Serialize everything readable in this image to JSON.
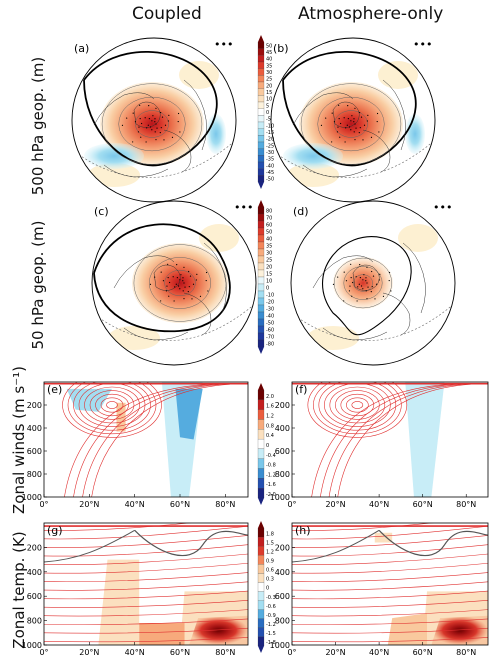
{
  "figure": {
    "column_titles": [
      "Coupled",
      "Atmosphere-only"
    ],
    "row_titles": [
      "500 hPa geop. (m)",
      "50 hPa geop. (m)",
      "Zonal winds (m s⁻¹)",
      "Zonal temp. (K)"
    ]
  },
  "chart_data": [
    {
      "type": "heatmap",
      "panel": "(a)",
      "kind": "polar map",
      "column": "Coupled",
      "row": "500 hPa geop. (m)",
      "features": [
        "positive anomaly over Arctic / Greenland",
        "negative anomaly over North Pacific",
        "negative anomaly over central Asia"
      ]
    },
    {
      "type": "heatmap",
      "panel": "(b)",
      "kind": "polar map",
      "column": "Atmosphere-only",
      "row": "500 hPa geop. (m)",
      "features": [
        "positive anomaly over Arctic",
        "negative anomaly over North Pacific"
      ]
    },
    {
      "type": "heatmap",
      "panel": "(c)",
      "kind": "polar map",
      "column": "Coupled",
      "row": "50 hPa geop. (m)",
      "features": [
        "strong positive anomaly over Arctic"
      ]
    },
    {
      "type": "heatmap",
      "panel": "(d)",
      "kind": "polar map",
      "column": "Atmosphere-only",
      "row": "50 hPa geop. (m)",
      "features": [
        "weaker positive anomaly over Arctic"
      ]
    },
    {
      "type": "heatmap",
      "panel": "(e)",
      "kind": "latitude-pressure",
      "column": "Coupled",
      "row": "Zonal winds",
      "xticks": [
        "0°",
        "20°N",
        "40°N",
        "60°N",
        "80°N"
      ],
      "yticks": [
        "200",
        "400",
        "600",
        "800",
        "1000"
      ],
      "xlim": [
        0,
        90
      ],
      "ylim": [
        1000,
        0
      ],
      "jet_core": {
        "lat": 30,
        "p": 200
      }
    },
    {
      "type": "heatmap",
      "panel": "(f)",
      "kind": "latitude-pressure",
      "column": "Atmosphere-only",
      "row": "Zonal winds",
      "xticks": [
        "0°",
        "20°N",
        "40°N",
        "60°N",
        "80°N"
      ],
      "yticks": [
        "200",
        "400",
        "600",
        "800",
        "1000"
      ],
      "xlim": [
        0,
        90
      ],
      "ylim": [
        1000,
        0
      ],
      "jet_core": {
        "lat": 30,
        "p": 200
      }
    },
    {
      "type": "heatmap",
      "panel": "(g)",
      "kind": "latitude-pressure",
      "column": "Coupled",
      "row": "Zonal temp.",
      "xticks": [
        "0°",
        "20°N",
        "40°N",
        "60°N",
        "80°N"
      ],
      "yticks": [
        "200",
        "400",
        "600",
        "800",
        "1000"
      ],
      "xlim": [
        0,
        90
      ],
      "ylim": [
        1000,
        0
      ]
    },
    {
      "type": "heatmap",
      "panel": "(h)",
      "kind": "latitude-pressure",
      "column": "Atmosphere-only",
      "row": "Zonal temp.",
      "xticks": [
        "0°",
        "20°N",
        "40°N",
        "60°N",
        "80°N"
      ],
      "yticks": [
        "200",
        "400",
        "600",
        "800",
        "1000"
      ],
      "xlim": [
        0,
        90
      ],
      "ylim": [
        1000,
        0
      ]
    }
  ],
  "colorbars": [
    {
      "row": "500 hPa geop. (m)",
      "ticks": [
        "50",
        "45",
        "40",
        "35",
        "30",
        "25",
        "20",
        "15",
        "10",
        "5",
        "0",
        "-5",
        "-10",
        "-15",
        "-20",
        "-25",
        "-30",
        "-35",
        "-40",
        "-45",
        "-50"
      ]
    },
    {
      "row": "50 hPa geop. (m)",
      "ticks": [
        "80",
        "70",
        "60",
        "50",
        "40",
        "35",
        "30",
        "25",
        "20",
        "15",
        "10",
        "0",
        "-10",
        "-20",
        "-30",
        "-40",
        "-50",
        "-60",
        "-70",
        "-80"
      ]
    },
    {
      "row": "Zonal winds",
      "ticks": [
        "2.0",
        "1.6",
        "1.2",
        "0.8",
        "0.4",
        "0",
        "-0.4",
        "-0.8",
        "-1.2",
        "-1.6",
        "-2.0"
      ]
    },
    {
      "row": "Zonal temp.",
      "ticks": [
        "1.8",
        "1.5",
        "1.2",
        "0.9",
        "0.6",
        "0.3",
        "0",
        "-0.3",
        "-0.6",
        "-0.9",
        "-1.2",
        "-1.5",
        "-1.8"
      ]
    }
  ],
  "colors": {
    "palette": [
      "#6b0000",
      "#9b0d0d",
      "#c21f1f",
      "#dc3b2c",
      "#ea5d3e",
      "#f3865b",
      "#f7aa7c",
      "#f9c99e",
      "#fbe0bf",
      "#fdf2dc",
      "#ffffff",
      "#e8f7fb",
      "#c8edf7",
      "#a3def1",
      "#7ac7ea",
      "#55acdf",
      "#3a8dd0",
      "#2a6dc0",
      "#2450b0",
      "#1f389c",
      "#1a2480"
    ],
    "jet_contour": "#e03030",
    "neg_contour": "#555555"
  },
  "dots": "•••"
}
